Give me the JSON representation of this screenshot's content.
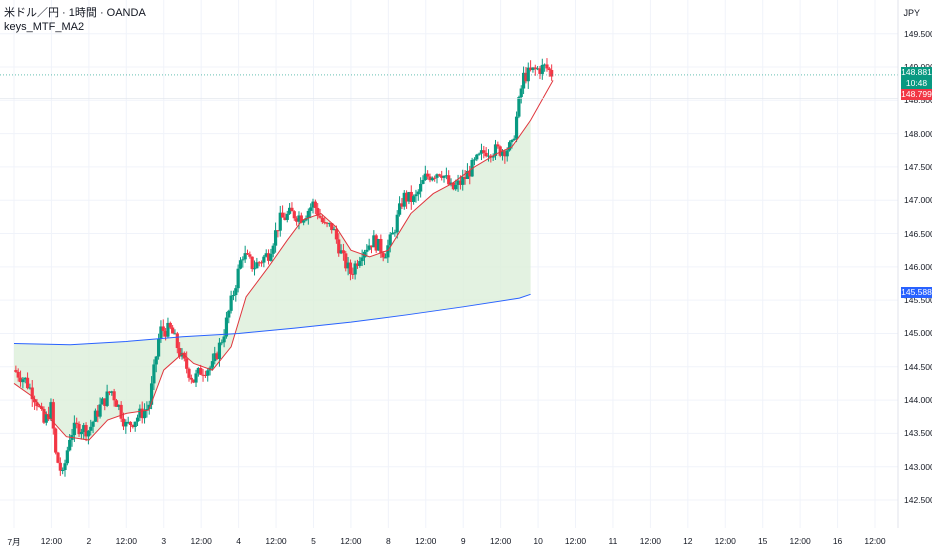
{
  "header": {
    "symbol_line": "米ドル／円 · 1時間 · OANDA",
    "indicator_line": "keys_MTF_MA2"
  },
  "axis": {
    "currency": "JPY",
    "price_ticks": [
      "149.500",
      "149.000",
      "148.500",
      "148.000",
      "147.500",
      "147.000",
      "146.500",
      "146.000",
      "145.500",
      "145.000",
      "144.500",
      "144.000",
      "143.500",
      "143.000",
      "142.500"
    ],
    "time_ticks": [
      "7月",
      "12:00",
      "2",
      "12:00",
      "3",
      "12:00",
      "4",
      "12:00",
      "5",
      "12:00",
      "8",
      "12:00",
      "9",
      "12:00",
      "10",
      "12:00",
      "11",
      "12:00",
      "12",
      "12:00",
      "15",
      "12:00",
      "16",
      "12:00"
    ]
  },
  "price_tags": {
    "last_price": "148.881",
    "countdown": "10:48",
    "ma_fast": "148.799",
    "ma_long": "145.588"
  },
  "colors": {
    "bull": "#089981",
    "bear": "#f23645",
    "ma_fast": "#e0363d",
    "ma_long": "#2962ff",
    "fill": "#dcefd9",
    "grid": "#f0f3fa"
  },
  "chart_data": {
    "type": "candlestick",
    "title": "",
    "ylim": [
      142.25,
      149.75
    ],
    "x": [
      "7月",
      "12:00",
      "2",
      "12:00",
      "3",
      "12:00",
      "4",
      "12:00",
      "5",
      "12:00",
      "8",
      "12:00",
      "9",
      "12:00",
      "10",
      "12:00",
      "11",
      "12:00",
      "12",
      "12:00",
      "15",
      "12:00",
      "16",
      "12:00"
    ],
    "close_path": [
      [
        0,
        144.45
      ],
      [
        0.3,
        144.3
      ],
      [
        0.6,
        144.0
      ],
      [
        0.8,
        143.65
      ],
      [
        1.0,
        143.9
      ],
      [
        1.1,
        143.2
      ],
      [
        1.3,
        142.85
      ],
      [
        1.5,
        143.5
      ],
      [
        1.7,
        143.6
      ],
      [
        2.0,
        143.55
      ],
      [
        2.3,
        143.9
      ],
      [
        2.6,
        144.15
      ],
      [
        2.8,
        143.9
      ],
      [
        3.0,
        143.6
      ],
      [
        3.3,
        143.75
      ],
      [
        3.6,
        143.9
      ],
      [
        3.9,
        145.05
      ],
      [
        4.2,
        145.05
      ],
      [
        4.5,
        144.6
      ],
      [
        4.8,
        144.3
      ],
      [
        5.0,
        144.45
      ],
      [
        5.3,
        144.5
      ],
      [
        5.6,
        145.0
      ],
      [
        5.9,
        145.7
      ],
      [
        6.1,
        146.2
      ],
      [
        6.4,
        146.0
      ],
      [
        6.8,
        146.2
      ],
      [
        7.1,
        146.7
      ],
      [
        7.4,
        146.8
      ],
      [
        7.7,
        146.75
      ],
      [
        8.0,
        146.95
      ],
      [
        8.3,
        146.6
      ],
      [
        8.5,
        146.6
      ],
      [
        8.8,
        146.1
      ],
      [
        9.0,
        145.9
      ],
      [
        9.3,
        146.25
      ],
      [
        9.6,
        146.4
      ],
      [
        9.9,
        146.2
      ],
      [
        10.1,
        146.45
      ],
      [
        10.4,
        147.05
      ],
      [
        10.7,
        147.0
      ],
      [
        11.0,
        147.35
      ],
      [
        11.4,
        147.45
      ],
      [
        11.7,
        147.15
      ],
      [
        12.0,
        147.3
      ],
      [
        12.3,
        147.55
      ],
      [
        12.6,
        147.75
      ],
      [
        13.0,
        147.75
      ],
      [
        13.3,
        147.8
      ],
      [
        13.6,
        148.85
      ],
      [
        13.9,
        148.95
      ],
      [
        14.2,
        149.0
      ],
      [
        14.4,
        148.88
      ]
    ],
    "series": [
      {
        "values": [
          [
            0,
            144.25
          ],
          [
            0.5,
            144.05
          ],
          [
            1.0,
            143.7
          ],
          [
            1.4,
            143.45
          ],
          [
            2.0,
            143.4
          ],
          [
            2.5,
            143.7
          ],
          [
            3.0,
            143.8
          ],
          [
            3.6,
            143.85
          ],
          [
            4.0,
            144.45
          ],
          [
            4.5,
            144.7
          ],
          [
            4.8,
            144.55
          ],
          [
            5.3,
            144.45
          ],
          [
            5.8,
            144.8
          ],
          [
            6.2,
            145.55
          ],
          [
            6.8,
            146.0
          ],
          [
            7.3,
            146.4
          ],
          [
            7.7,
            146.7
          ],
          [
            8.2,
            146.8
          ],
          [
            8.6,
            146.6
          ],
          [
            9.0,
            146.25
          ],
          [
            9.5,
            146.15
          ],
          [
            10.0,
            146.25
          ],
          [
            10.6,
            146.8
          ],
          [
            11.2,
            147.1
          ],
          [
            11.7,
            147.25
          ],
          [
            12.3,
            147.5
          ],
          [
            12.9,
            147.7
          ],
          [
            13.3,
            147.8
          ],
          [
            13.8,
            148.2
          ],
          [
            14.4,
            148.8
          ]
        ]
      },
      {
        "values": [
          [
            0,
            144.85
          ],
          [
            1.5,
            144.83
          ],
          [
            3.0,
            144.88
          ],
          [
            4.5,
            144.95
          ],
          [
            6.0,
            145.0
          ],
          [
            7.5,
            145.08
          ],
          [
            9.0,
            145.17
          ],
          [
            10.5,
            145.28
          ],
          [
            12.0,
            145.4
          ],
          [
            13.5,
            145.53
          ],
          [
            13.8,
            145.588
          ]
        ]
      }
    ]
  }
}
